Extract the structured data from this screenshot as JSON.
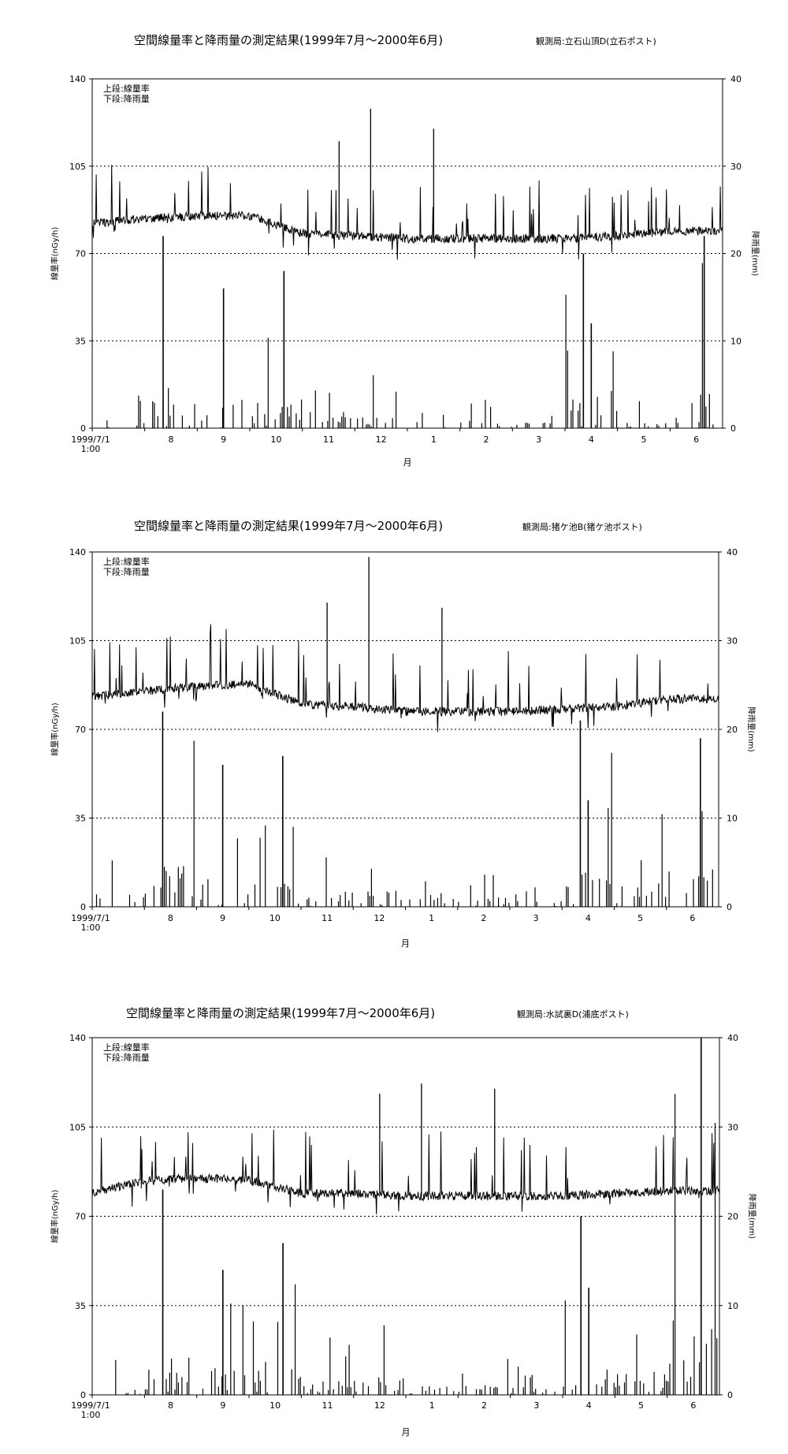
{
  "charts": [
    {
      "title": "空間線量率と降雨量の測定結果(1999年7月～2000年6月)",
      "station": "観測局:立石山頂D(立石ポスト)",
      "legend_lines": [
        "上段:線量率",
        "下段:降雨量"
      ],
      "ylabel_left": "線量率(nGy/h)",
      "ylabel_right": "降雨量(mm)",
      "xlabel": "月",
      "x_ticks": [
        "1999/7/1\n1:00",
        "8",
        "9",
        "10",
        "11",
        "12",
        "1",
        "2",
        "3",
        "4",
        "5",
        "6"
      ],
      "left_ticks": [
        "0",
        "35",
        "70",
        "105",
        "140"
      ],
      "right_ticks": [
        "0",
        "10",
        "20",
        "30",
        "40"
      ]
    },
    {
      "title": "空間線量率と降雨量の測定結果(1999年7月～2000年6月)",
      "station": "観測局:猪ケ池B(猪ケ池ポスト)",
      "legend_lines": [
        "上段:線量率",
        "下段:降雨量"
      ],
      "ylabel_left": "線量率(nGy/h)",
      "ylabel_right": "降雨量(mm)",
      "xlabel": "月",
      "x_ticks": [
        "1999/7/1\n1:00",
        "8",
        "9",
        "10",
        "11",
        "12",
        "1",
        "2",
        "3",
        "4",
        "5",
        "6"
      ],
      "left_ticks": [
        "0",
        "35",
        "70",
        "105",
        "140"
      ],
      "right_ticks": [
        "0",
        "10",
        "20",
        "30",
        "40"
      ]
    },
    {
      "title": "空間線量率と降雨量の測定結果(1999年7月～2000年6月)",
      "station": "観測局:水試裏D(浦底ポスト)",
      "legend_lines": [
        "上段:線量率",
        "下段:降雨量"
      ],
      "ylabel_left": "線量率(nGy/h)",
      "ylabel_right": "降雨量(mm)",
      "xlabel": "月",
      "x_ticks": [
        "1999/7/1\n1:00",
        "8",
        "9",
        "10",
        "11",
        "12",
        "1",
        "2",
        "3",
        "4",
        "5",
        "6"
      ],
      "left_ticks": [
        "0",
        "35",
        "70",
        "105",
        "140"
      ],
      "right_ticks": [
        "0",
        "10",
        "20",
        "30",
        "40"
      ]
    }
  ],
  "chart_data": [
    {
      "type": "line",
      "title": "空間線量率と降雨量の測定結果(1999年7月～2000年6月)",
      "station": "観測局:立石山頂D(立石ポスト)",
      "xlabel": "月",
      "ylabel_left": "線量率(nGy/h)",
      "ylabel_right": "降雨量(mm)",
      "ylim_left": [
        0,
        140
      ],
      "ylim_right": [
        0,
        40
      ],
      "grid": "horizontal dotted",
      "legend": "top-left",
      "x": [
        "1999/7/1",
        "8",
        "9",
        "10",
        "11",
        "12",
        "1",
        "2",
        "3",
        "4",
        "5",
        "6"
      ],
      "series": [
        {
          "name": "上段:線量率",
          "axis": "left",
          "values": [
            82,
            84,
            85,
            85,
            78,
            77,
            76,
            76,
            76,
            76,
            77,
            79
          ],
          "notable_spikes": [
            {
              "x": "12",
              "y": 128
            },
            {
              "x": "1",
              "y": 120
            },
            {
              "x": "11",
              "y": 115
            }
          ]
        },
        {
          "name": "下段:降雨量",
          "axis": "right",
          "values": [
            5,
            21,
            15,
            18,
            9,
            8,
            8,
            4,
            3,
            19,
            4,
            22
          ],
          "notable_peaks": [
            {
              "x": "8",
              "y": 22
            },
            {
              "x": "9",
              "y": 16
            },
            {
              "x": "10",
              "y": 18
            },
            {
              "x": "4",
              "y": 20
            },
            {
              "x": "4",
              "y": 12
            },
            {
              "x": "6",
              "y": 22
            }
          ]
        }
      ]
    },
    {
      "type": "line",
      "title": "空間線量率と降雨量の測定結果(1999年7月～2000年6月)",
      "station": "観測局:猪ケ池B(猪ケ池ポスト)",
      "xlabel": "月",
      "ylabel_left": "線量率(nGy/h)",
      "ylabel_right": "降雨量(mm)",
      "ylim_left": [
        0,
        140
      ],
      "ylim_right": [
        0,
        40
      ],
      "grid": "horizontal dotted",
      "legend": "top-left",
      "x": [
        "1999/7/1",
        "8",
        "9",
        "10",
        "11",
        "12",
        "1",
        "2",
        "3",
        "4",
        "5",
        "6"
      ],
      "series": [
        {
          "name": "上段:線量率",
          "axis": "left",
          "values": [
            83,
            85,
            87,
            88,
            80,
            79,
            77,
            77,
            77,
            78,
            79,
            82
          ],
          "notable_spikes": [
            {
              "x": "12",
              "y": 138
            },
            {
              "x": "11",
              "y": 120
            },
            {
              "x": "1",
              "y": 118
            }
          ]
        },
        {
          "name": "下段:降雨量",
          "axis": "right",
          "values": [
            7,
            21,
            15,
            17,
            8,
            9,
            7,
            5,
            3,
            21,
            12,
            19
          ],
          "notable_peaks": [
            {
              "x": "8",
              "y": 22
            },
            {
              "x": "9",
              "y": 16
            },
            {
              "x": "10",
              "y": 17
            },
            {
              "x": "4",
              "y": 21
            },
            {
              "x": "4",
              "y": 12
            },
            {
              "x": "6",
              "y": 19
            }
          ]
        }
      ]
    },
    {
      "type": "line",
      "title": "空間線量率と降雨量の測定結果(1999年7月～2000年6月)",
      "station": "観測局:水試裏D(浦底ポスト)",
      "xlabel": "月",
      "ylabel_left": "線量率(nGy/h)",
      "ylabel_right": "降雨量(mm)",
      "ylim_left": [
        0,
        140
      ],
      "ylim_right": [
        0,
        40
      ],
      "grid": "horizontal dotted",
      "legend": "top-left",
      "x": [
        "1999/7/1",
        "8",
        "9",
        "10",
        "11",
        "12",
        "1",
        "2",
        "3",
        "4",
        "5",
        "6"
      ],
      "series": [
        {
          "name": "上段:線量率",
          "axis": "left",
          "values": [
            79,
            84,
            85,
            84,
            79,
            79,
            78,
            78,
            78,
            78,
            79,
            80
          ],
          "notable_spikes": [
            {
              "x": "1",
              "y": 122
            },
            {
              "x": "12",
              "y": 118
            },
            {
              "x": "2",
              "y": 120
            }
          ]
        },
        {
          "name": "下段:降雨量",
          "axis": "right",
          "values": [
            6,
            23,
            14,
            17,
            8,
            10,
            6,
            5,
            4,
            20,
            12,
            40
          ],
          "notable_peaks": [
            {
              "x": "8",
              "y": 23
            },
            {
              "x": "9",
              "y": 14
            },
            {
              "x": "10",
              "y": 17
            },
            {
              "x": "4",
              "y": 20
            },
            {
              "x": "4",
              "y": 12
            },
            {
              "x": "6",
              "y": 40
            }
          ]
        }
      ]
    }
  ]
}
